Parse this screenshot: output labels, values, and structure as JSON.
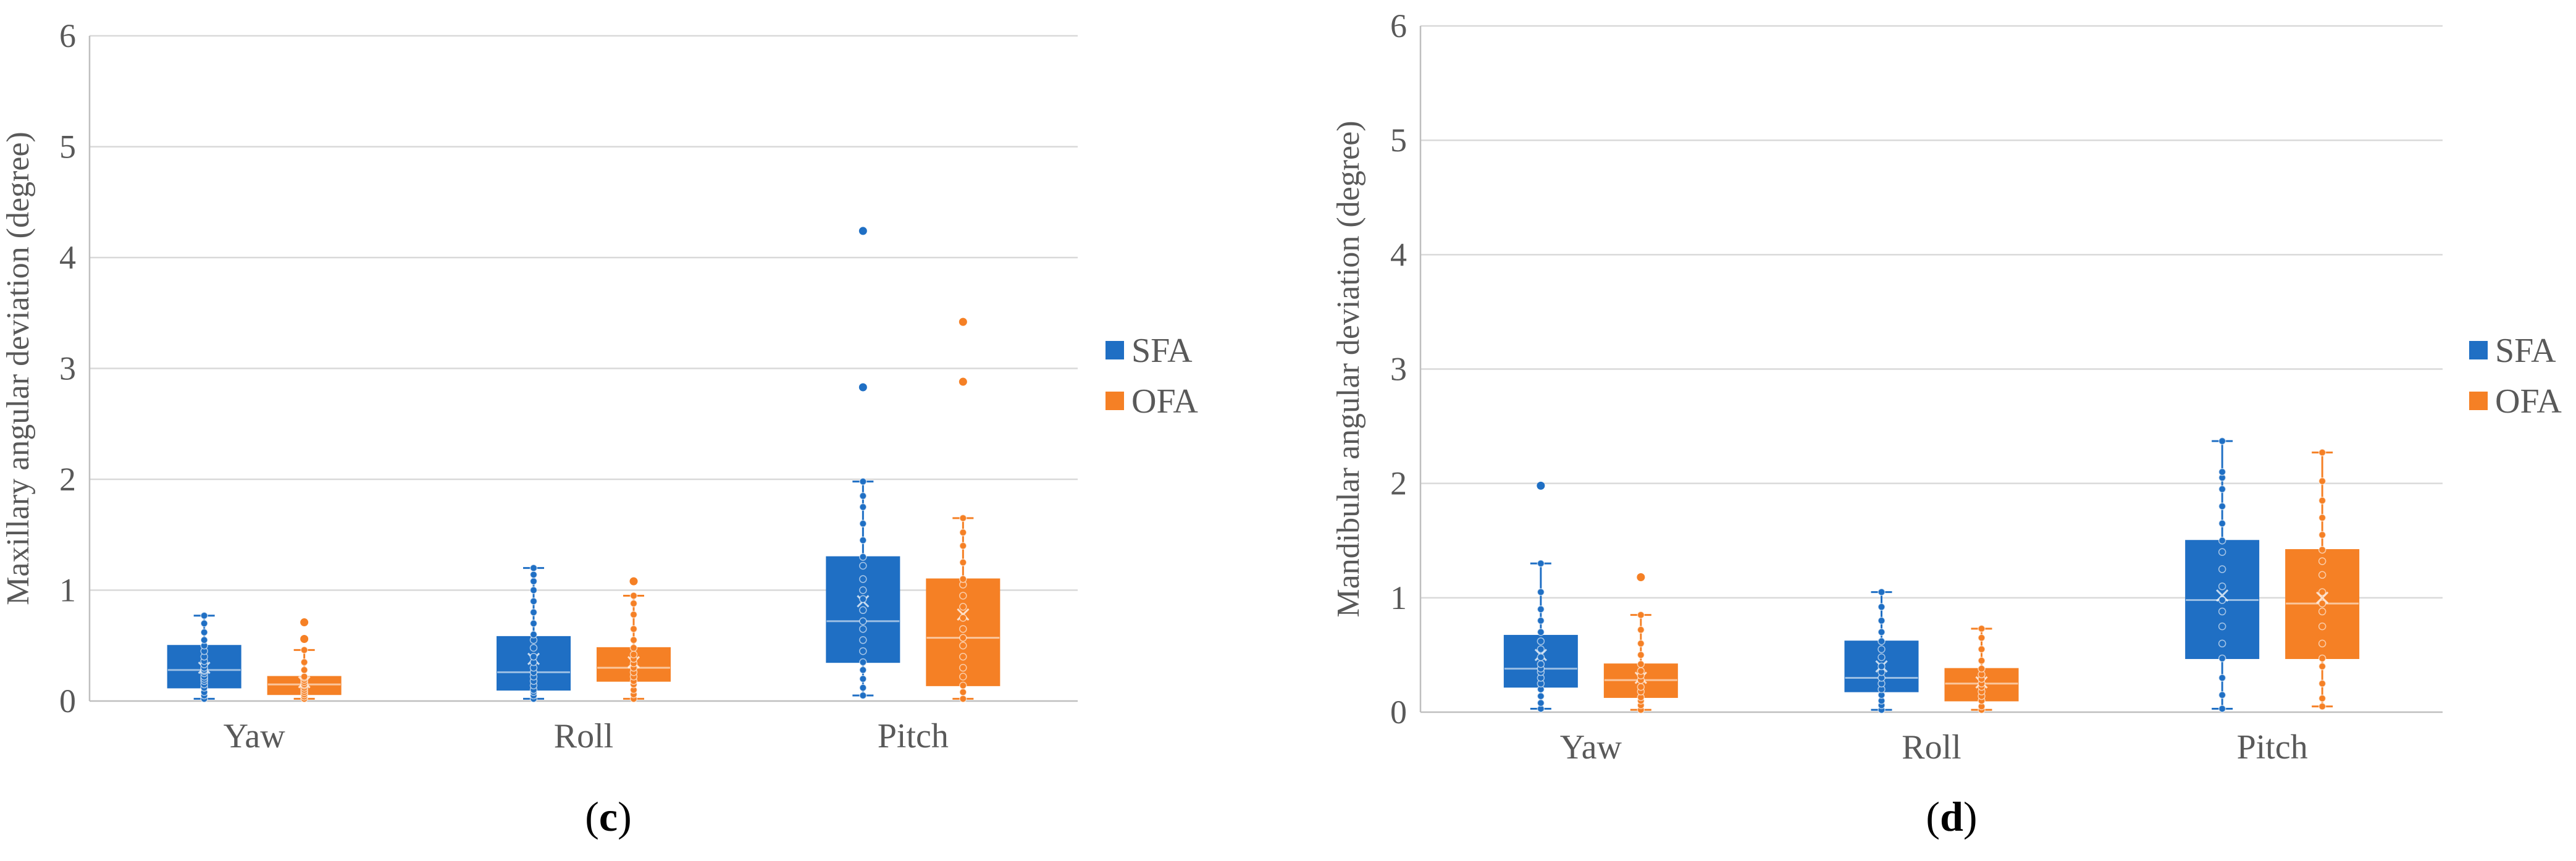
{
  "chart_data": [
    {
      "type": "box",
      "panel_label": "c",
      "title": "",
      "xlabel": "",
      "ylabel": "Maxillary angular deviation (degree)",
      "ylim": [
        0,
        6
      ],
      "yticks": [
        "0",
        "1",
        "2",
        "3",
        "4",
        "5",
        "6"
      ],
      "categories": [
        "Yaw",
        "Roll",
        "Pitch"
      ],
      "legend": [
        "SFA",
        "OFA"
      ],
      "legend_position": "right",
      "series": [
        {
          "name": "SFA",
          "color": "#1f6fc4",
          "boxes": [
            {
              "category": "Yaw",
              "min": 0.02,
              "q1": 0.12,
              "median": 0.28,
              "q3": 0.5,
              "max": 0.77,
              "mean": 0.3,
              "points": [
                0.02,
                0.05,
                0.08,
                0.12,
                0.15,
                0.18,
                0.2,
                0.22,
                0.25,
                0.27,
                0.28,
                0.3,
                0.33,
                0.36,
                0.4,
                0.45,
                0.5,
                0.55,
                0.62,
                0.7,
                0.77
              ],
              "outliers": []
            },
            {
              "category": "Roll",
              "min": 0.02,
              "q1": 0.1,
              "median": 0.26,
              "q3": 0.58,
              "max": 1.2,
              "mean": 0.38,
              "points": [
                0.02,
                0.05,
                0.08,
                0.1,
                0.14,
                0.18,
                0.22,
                0.26,
                0.3,
                0.35,
                0.4,
                0.48,
                0.55,
                0.6,
                0.7,
                0.8,
                0.9,
                1.0,
                1.08,
                1.14,
                1.2
              ],
              "outliers": []
            },
            {
              "category": "Pitch",
              "min": 0.05,
              "q1": 0.35,
              "median": 0.72,
              "q3": 1.3,
              "max": 1.98,
              "mean": 0.9,
              "points": [
                0.05,
                0.12,
                0.2,
                0.28,
                0.35,
                0.45,
                0.55,
                0.65,
                0.72,
                0.82,
                0.92,
                1.0,
                1.1,
                1.22,
                1.3,
                1.45,
                1.6,
                1.75,
                1.85,
                1.98
              ],
              "outliers": [
                2.83,
                4.24
              ]
            }
          ]
        },
        {
          "name": "OFA",
          "color": "#f58025",
          "boxes": [
            {
              "category": "Yaw",
              "min": 0.02,
              "q1": 0.06,
              "median": 0.15,
              "q3": 0.22,
              "max": 0.46,
              "mean": 0.17,
              "points": [
                0.02,
                0.04,
                0.06,
                0.08,
                0.1,
                0.12,
                0.14,
                0.15,
                0.17,
                0.19,
                0.21,
                0.22,
                0.28,
                0.35,
                0.46
              ],
              "outliers": [
                0.56,
                0.71
              ]
            },
            {
              "category": "Roll",
              "min": 0.02,
              "q1": 0.18,
              "median": 0.3,
              "q3": 0.48,
              "max": 0.95,
              "mean": 0.35,
              "points": [
                0.02,
                0.06,
                0.1,
                0.15,
                0.18,
                0.22,
                0.26,
                0.3,
                0.34,
                0.38,
                0.42,
                0.48,
                0.55,
                0.65,
                0.78,
                0.88,
                0.95
              ],
              "outliers": [
                1.08
              ]
            },
            {
              "category": "Pitch",
              "min": 0.02,
              "q1": 0.14,
              "median": 0.57,
              "q3": 1.1,
              "max": 1.65,
              "mean": 0.78,
              "points": [
                0.02,
                0.08,
                0.14,
                0.22,
                0.3,
                0.4,
                0.5,
                0.57,
                0.65,
                0.75,
                0.85,
                0.95,
                1.05,
                1.1,
                1.25,
                1.4,
                1.52,
                1.65
              ],
              "outliers": [
                2.88,
                3.42
              ]
            }
          ]
        }
      ]
    },
    {
      "type": "box",
      "panel_label": "d",
      "title": "",
      "xlabel": "",
      "ylabel": "Mandibular angular deviation (degree)",
      "ylim": [
        0,
        6
      ],
      "yticks": [
        "0",
        "1",
        "2",
        "3",
        "4",
        "5",
        "6"
      ],
      "categories": [
        "Yaw",
        "Roll",
        "Pitch"
      ],
      "legend": [
        "SFA",
        "OFA"
      ],
      "legend_position": "right",
      "series": [
        {
          "name": "SFA",
          "color": "#1f6fc4",
          "boxes": [
            {
              "category": "Yaw",
              "min": 0.03,
              "q1": 0.22,
              "median": 0.38,
              "q3": 0.67,
              "max": 1.3,
              "mean": 0.5,
              "points": [
                0.03,
                0.08,
                0.14,
                0.2,
                0.25,
                0.3,
                0.35,
                0.38,
                0.42,
                0.48,
                0.55,
                0.62,
                0.7,
                0.8,
                0.9,
                1.05,
                1.3
              ],
              "outliers": [
                1.98
              ]
            },
            {
              "category": "Roll",
              "min": 0.02,
              "q1": 0.18,
              "median": 0.3,
              "q3": 0.62,
              "max": 1.05,
              "mean": 0.4,
              "points": [
                0.02,
                0.06,
                0.1,
                0.15,
                0.2,
                0.25,
                0.3,
                0.35,
                0.4,
                0.48,
                0.55,
                0.62,
                0.7,
                0.8,
                0.92,
                1.05
              ],
              "outliers": []
            },
            {
              "category": "Pitch",
              "min": 0.03,
              "q1": 0.47,
              "median": 0.98,
              "q3": 1.5,
              "max": 2.37,
              "mean": 1.02,
              "points": [
                0.03,
                0.15,
                0.3,
                0.47,
                0.6,
                0.75,
                0.88,
                0.98,
                1.1,
                1.25,
                1.4,
                1.5,
                1.65,
                1.8,
                1.95,
                2.05,
                2.1,
                2.37
              ],
              "outliers": []
            }
          ]
        },
        {
          "name": "OFA",
          "color": "#f58025",
          "boxes": [
            {
              "category": "Yaw",
              "min": 0.02,
              "q1": 0.13,
              "median": 0.28,
              "q3": 0.42,
              "max": 0.85,
              "mean": 0.3,
              "points": [
                0.02,
                0.06,
                0.1,
                0.13,
                0.18,
                0.22,
                0.28,
                0.32,
                0.36,
                0.42,
                0.5,
                0.6,
                0.72,
                0.85
              ],
              "outliers": [
                1.18
              ]
            },
            {
              "category": "Roll",
              "min": 0.02,
              "q1": 0.1,
              "median": 0.25,
              "q3": 0.38,
              "max": 0.73,
              "mean": 0.26,
              "points": [
                0.02,
                0.05,
                0.1,
                0.14,
                0.18,
                0.22,
                0.25,
                0.29,
                0.33,
                0.38,
                0.45,
                0.55,
                0.65,
                0.73
              ],
              "outliers": []
            },
            {
              "category": "Pitch",
              "min": 0.05,
              "q1": 0.47,
              "median": 0.95,
              "q3": 1.42,
              "max": 2.27,
              "mean": 1.0,
              "points": [
                0.05,
                0.12,
                0.25,
                0.4,
                0.47,
                0.6,
                0.75,
                0.88,
                0.95,
                1.05,
                1.2,
                1.32,
                1.42,
                1.55,
                1.7,
                1.85,
                2.02,
                2.27
              ],
              "outliers": []
            }
          ]
        }
      ]
    }
  ]
}
